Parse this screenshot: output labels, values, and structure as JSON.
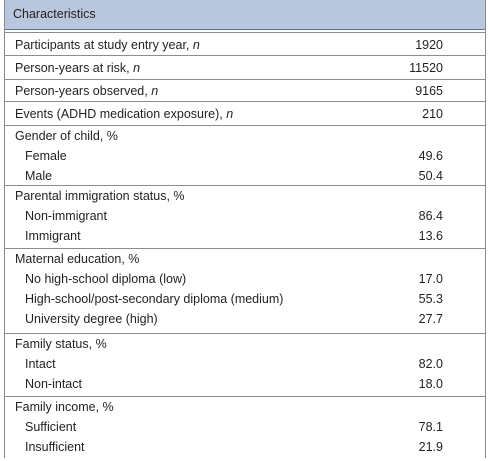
{
  "table": {
    "header": "Characteristics",
    "rows": [
      {
        "label": "Participants at study entry year, ",
        "unit": "n",
        "value": "1920"
      },
      {
        "label": "Person-years at risk, ",
        "unit": "n",
        "value": "11520"
      },
      {
        "label": "Person-years observed, ",
        "unit": "n",
        "value": "9165"
      },
      {
        "label": "Events (ADHD medication exposure), ",
        "unit": "n",
        "value": "210"
      }
    ],
    "groups": {
      "gender": {
        "title": "Gender of child, %",
        "items": [
          {
            "label": "Female",
            "value": "49.6"
          },
          {
            "label": "Male",
            "value": "50.4"
          }
        ]
      },
      "immigration": {
        "title": "Parental immigration status, %",
        "items": [
          {
            "label": "Non-immigrant",
            "value": "86.4"
          },
          {
            "label": "Immigrant",
            "value": "13.6"
          }
        ]
      },
      "education": {
        "title": "Maternal education, %",
        "items": [
          {
            "label": "No high-school diploma (low)",
            "value": "17.0"
          },
          {
            "label": "High-school/post-secondary diploma (medium)",
            "value": "55.3"
          },
          {
            "label": "University degree (high)",
            "value": "27.7"
          }
        ]
      },
      "family": {
        "title": "Family status, %",
        "items": [
          {
            "label": "Intact",
            "value": "82.0"
          },
          {
            "label": "Non-intact",
            "value": "18.0"
          }
        ]
      },
      "income": {
        "title": "Family income, %",
        "items": [
          {
            "label": "Sufficient",
            "value": "78.1"
          },
          {
            "label": "Insufficient",
            "value": "21.9"
          }
        ]
      }
    }
  }
}
